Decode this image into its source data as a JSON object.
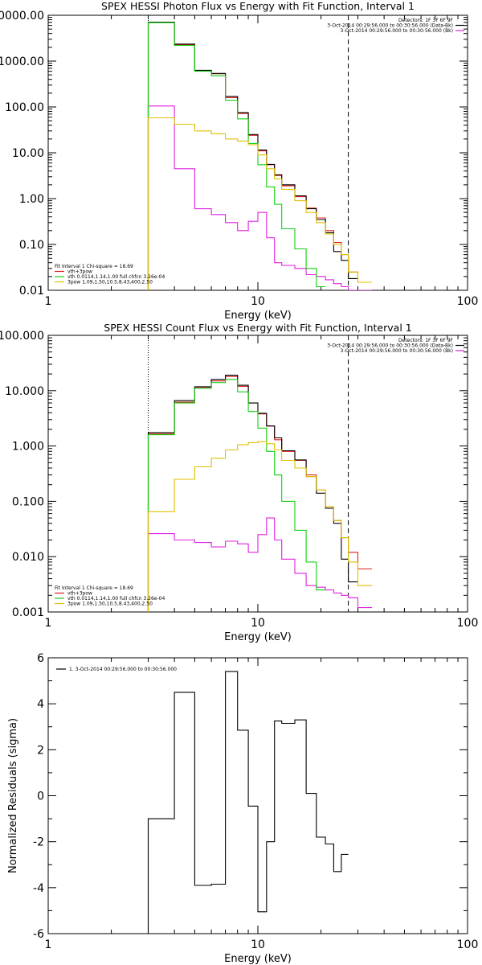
{
  "chart_data": [
    {
      "type": "line",
      "title": "SPEX HESSI Photon Flux vs Energy with Fit Function, Interval 1",
      "xlabel": "Energy (keV)",
      "ylabel": "",
      "xscale": "log",
      "yscale": "log",
      "xlim": [
        1,
        100
      ],
      "ylim": [
        0.01,
        10000
      ],
      "xticks": [
        "1",
        "10",
        "100"
      ],
      "yticks": [
        {
          "value": 0.01,
          "label": "0.01"
        },
        {
          "value": 0.1,
          "label": "0.10"
        },
        {
          "value": 1,
          "label": "1.00"
        },
        {
          "value": 10,
          "label": "10.00"
        },
        {
          "value": 100,
          "label": "100.00"
        },
        {
          "value": 1000,
          "label": "1000.00"
        },
        {
          "value": 10000,
          "label": "10000.00"
        }
      ],
      "ref_lines": [
        {
          "x": 3.0,
          "style": "dotted",
          "color": "#000000"
        },
        {
          "x": 27.0,
          "style": "dashed",
          "color": "#000000"
        }
      ],
      "legend_top_right": [
        {
          "text": "Detectors: 1F 3F 6F 9F",
          "color": null
        },
        {
          "text": "3-Oct-2014 00:29:56.000 to 00:30:56.000 (Data-Bk)",
          "color": "#000000"
        },
        {
          "text": "3-Oct-2014 00:29:56.000 to 00:30:56.000 (Bk)",
          "color": "#e020e0"
        }
      ],
      "legend_bottom_left": [
        {
          "text": "Fit Interval 1    Chi-square = 18.69",
          "color": null
        },
        {
          "text": "vth+3pow",
          "color": "#e02020"
        },
        {
          "text": "vth 0.0114,1.14,1.00  full chfcn 3.26e-04",
          "color": "#10d010"
        },
        {
          "text": "3pow 1.09,1.50,10.5,8.43,400,2.50",
          "color": "#e0c000"
        }
      ],
      "edges": [
        3.0,
        3.33,
        3.67,
        4.0,
        4.5,
        5.0,
        5.5,
        6.0,
        6.5,
        7.0,
        7.5,
        8.0,
        8.5,
        9.0,
        9.5,
        10.0,
        10.5,
        11.0,
        11.5,
        12.0,
        12.5,
        13.0,
        14.0,
        15.0,
        16.0,
        17.0,
        18.0,
        19.0,
        20.0,
        21.0,
        22.0,
        23.0,
        24.0,
        25.0,
        26.0,
        27.0,
        30.0,
        35.0
      ],
      "series": [
        {
          "name": "Bk",
          "color": "#e020e0",
          "values": [
            105,
            105,
            105,
            4.5,
            4.5,
            0.6,
            0.6,
            0.45,
            0.45,
            0.3,
            0.3,
            0.2,
            0.2,
            0.32,
            0.32,
            0.5,
            0.5,
            0.14,
            0.14,
            0.04,
            0.04,
            0.035,
            0.035,
            0.03,
            0.03,
            0.022,
            0.022,
            0.02,
            0.02,
            0.017,
            0.017,
            0.014,
            0.014,
            0.012,
            0.012,
            0.01,
            0.01
          ]
        },
        {
          "name": "vth+3pow",
          "color": "#e02020",
          "values": [
            7000,
            7000,
            7000,
            2300,
            2300,
            620,
            620,
            530,
            530,
            160,
            160,
            72,
            72,
            24,
            24,
            11,
            11,
            5.5,
            5.5,
            3.2,
            3.2,
            1.9,
            1.9,
            1.1,
            1.1,
            0.62,
            0.62,
            0.38,
            0.38,
            0.2,
            0.2,
            0.11,
            0.11,
            0.06,
            0.06,
            0.025,
            0.015
          ]
        },
        {
          "name": "Data-Bk",
          "color": "#000000",
          "values": [
            7100,
            7100,
            7100,
            2350,
            2350,
            630,
            630,
            540,
            540,
            170,
            170,
            75,
            75,
            25,
            25,
            11.5,
            11.5,
            5.6,
            5.6,
            3.3,
            3.3,
            2.0,
            2.0,
            1.15,
            1.15,
            0.6,
            0.6,
            0.35,
            0.35,
            0.18,
            0.18,
            0.07,
            0.07,
            0.045,
            0.045,
            0.018,
            null
          ]
        },
        {
          "name": "vth",
          "color": "#10d010",
          "values": [
            6900,
            6900,
            6900,
            2200,
            2200,
            600,
            600,
            480,
            480,
            140,
            140,
            55,
            55,
            16,
            16,
            5.5,
            5.5,
            1.8,
            1.8,
            0.75,
            0.75,
            0.22,
            0.22,
            0.08,
            0.08,
            0.03,
            0.03,
            0.012,
            0.012,
            null,
            null,
            null,
            null,
            null,
            null,
            null,
            null
          ]
        },
        {
          "name": "3pow",
          "color": "#e0c000",
          "values": [
            58,
            58,
            58,
            42,
            42,
            30,
            30,
            26,
            26,
            20,
            20,
            18,
            18,
            15,
            15,
            9,
            9,
            4.5,
            4.5,
            2.7,
            2.7,
            1.6,
            1.6,
            0.9,
            0.9,
            0.5,
            0.5,
            0.3,
            0.3,
            0.17,
            0.17,
            0.1,
            0.1,
            0.06,
            0.06,
            0.025,
            0.015
          ]
        }
      ]
    },
    {
      "type": "line",
      "title": "SPEX HESSI Count Flux vs Energy with Fit Function, Interval 1",
      "xlabel": "Energy (keV)",
      "ylabel": "",
      "xscale": "log",
      "yscale": "log",
      "xlim": [
        1,
        100
      ],
      "ylim": [
        0.001,
        100
      ],
      "xticks": [
        "1",
        "10",
        "100"
      ],
      "yticks": [
        {
          "value": 0.001,
          "label": "0.001"
        },
        {
          "value": 0.01,
          "label": "0.010"
        },
        {
          "value": 0.1,
          "label": "0.100"
        },
        {
          "value": 1,
          "label": "1.000"
        },
        {
          "value": 10,
          "label": "10.000"
        },
        {
          "value": 100,
          "label": "100.000"
        }
      ],
      "ref_lines": [
        {
          "x": 3.0,
          "style": "dotted",
          "color": "#000000"
        },
        {
          "x": 27.0,
          "style": "dashed",
          "color": "#000000"
        }
      ],
      "legend_top_right": [
        {
          "text": "Detectors: 1F 3F 6F 9F",
          "color": null
        },
        {
          "text": "3-Oct-2014 00:29:56.000 to 00:30:56.000 (Data-Bk)",
          "color": "#000000"
        },
        {
          "text": "3-Oct-2014 00:29:56.000 to 00:30:56.000 (Bk)",
          "color": "#e020e0"
        }
      ],
      "legend_bottom_left": [
        {
          "text": "Fit Interval 1    Chi-square = 18.69",
          "color": null
        },
        {
          "text": "vth+3pow",
          "color": "#e02020"
        },
        {
          "text": "vth 0.0114,1.14,1.00  full chfcn 3.26e-04",
          "color": "#10d010"
        },
        {
          "text": "3pow 1.09,1.50,10.5,8.43,400,2.50",
          "color": "#e0c000"
        }
      ],
      "edges": [
        3.0,
        3.33,
        3.67,
        4.0,
        4.5,
        5.0,
        5.5,
        6.0,
        6.5,
        7.0,
        7.5,
        8.0,
        8.5,
        9.0,
        9.5,
        10.0,
        10.5,
        11.0,
        11.5,
        12.0,
        12.5,
        13.0,
        14.0,
        15.0,
        16.0,
        17.0,
        18.0,
        19.0,
        20.0,
        21.0,
        22.0,
        23.0,
        24.0,
        25.0,
        26.0,
        27.0,
        30.0,
        35.0
      ],
      "series": [
        {
          "name": "Bk",
          "color": "#e020e0",
          "values": [
            0.026,
            0.026,
            0.026,
            0.02,
            0.02,
            0.018,
            0.018,
            0.015,
            0.015,
            0.019,
            0.019,
            0.017,
            0.017,
            0.012,
            0.012,
            0.025,
            0.025,
            0.05,
            0.05,
            0.02,
            0.02,
            0.009,
            0.009,
            0.005,
            0.005,
            0.003,
            0.003,
            0.0028,
            0.0028,
            0.0025,
            0.0025,
            0.0022,
            0.0022,
            0.002,
            0.002,
            0.0018,
            0.0012
          ]
        },
        {
          "name": "vth+3pow",
          "color": "#e02020",
          "values": [
            1.65,
            1.65,
            1.65,
            6.2,
            6.2,
            11.5,
            11.5,
            15,
            15,
            18,
            18,
            12,
            12,
            6.0,
            6.0,
            3.8,
            3.8,
            2.3,
            2.3,
            1.3,
            1.3,
            0.8,
            0.8,
            0.55,
            0.55,
            0.3,
            0.3,
            0.16,
            0.16,
            0.08,
            0.08,
            0.045,
            0.045,
            0.022,
            0.022,
            0.012,
            0.006
          ]
        },
        {
          "name": "Data-Bk",
          "color": "#000000",
          "values": [
            1.75,
            1.75,
            1.75,
            6.6,
            6.6,
            11.8,
            11.8,
            16,
            16,
            19,
            19,
            12.5,
            12.5,
            6.0,
            6.0,
            3.9,
            3.9,
            2.3,
            2.3,
            1.4,
            1.4,
            0.82,
            0.82,
            0.56,
            0.56,
            0.28,
            0.28,
            0.14,
            0.14,
            0.075,
            0.075,
            0.04,
            0.04,
            0.009,
            0.009,
            0.0035,
            null
          ]
        },
        {
          "name": "vth",
          "color": "#10d010",
          "values": [
            1.6,
            1.6,
            1.6,
            6.0,
            6.0,
            11,
            11,
            14,
            14,
            16,
            16,
            9.5,
            9.5,
            4.2,
            4.2,
            2.1,
            2.1,
            0.8,
            0.8,
            0.3,
            0.3,
            0.1,
            0.1,
            0.03,
            0.03,
            0.008,
            0.008,
            0.0025,
            0.0025,
            null,
            null,
            null,
            null,
            null,
            null,
            null,
            null
          ]
        },
        {
          "name": "3pow",
          "color": "#e0c000",
          "values": [
            0.065,
            0.065,
            0.065,
            0.25,
            0.25,
            0.42,
            0.42,
            0.6,
            0.6,
            0.85,
            0.85,
            1.05,
            1.05,
            1.15,
            1.15,
            1.2,
            1.2,
            1.1,
            1.1,
            0.85,
            0.85,
            0.55,
            0.55,
            0.4,
            0.4,
            0.28,
            0.28,
            0.16,
            0.16,
            0.08,
            0.08,
            0.045,
            0.045,
            0.022,
            0.022,
            0.008,
            0.003
          ]
        }
      ]
    },
    {
      "type": "line",
      "title": "",
      "xlabel": "Energy (keV)",
      "ylabel": "Normalized Residuals (sigma)",
      "xscale": "log",
      "yscale": "linear",
      "xlim": [
        1,
        100
      ],
      "ylim": [
        -6,
        6
      ],
      "xticks": [
        "1",
        "10",
        "100"
      ],
      "yticks": [
        {
          "value": -6,
          "label": "-6"
        },
        {
          "value": -4,
          "label": "-4"
        },
        {
          "value": -2,
          "label": "-2"
        },
        {
          "value": 0,
          "label": "0"
        },
        {
          "value": 2,
          "label": "2"
        },
        {
          "value": 4,
          "label": "4"
        },
        {
          "value": 6,
          "label": "6"
        }
      ],
      "ref_lines": [],
      "legend_top_right": [],
      "legend_bottom_left": [],
      "legend_top_left": [
        {
          "text": "1.  3-Oct-2014 00:29:56.000 to 00:30:56.000",
          "color": "#000000"
        }
      ],
      "edges": [
        3.0,
        3.33,
        3.67,
        4.0,
        4.5,
        5.0,
        5.5,
        6.0,
        6.5,
        7.0,
        7.5,
        8.0,
        8.5,
        9.0,
        9.5,
        10.0,
        10.5,
        11.0,
        11.5,
        12.0,
        12.5,
        13.0,
        14.0,
        15.0,
        16.0,
        17.0,
        18.0,
        19.0,
        20.0,
        21.0,
        22.0,
        23.0,
        24.0,
        25.0,
        26.0,
        27.0
      ],
      "series": [
        {
          "name": "Residuals",
          "color": "#000000",
          "values": [
            -1.0,
            -1.0,
            -1.0,
            4.5,
            4.5,
            -3.9,
            -3.9,
            -3.85,
            -3.85,
            5.4,
            5.4,
            2.85,
            2.85,
            -0.45,
            -0.45,
            -5.05,
            -5.05,
            -2.0,
            -2.0,
            3.25,
            3.25,
            3.15,
            3.15,
            3.3,
            3.3,
            0.1,
            0.1,
            -1.8,
            -1.8,
            -2.1,
            -2.1,
            -3.3,
            -3.3,
            -2.55,
            -2.55
          ]
        }
      ]
    }
  ]
}
